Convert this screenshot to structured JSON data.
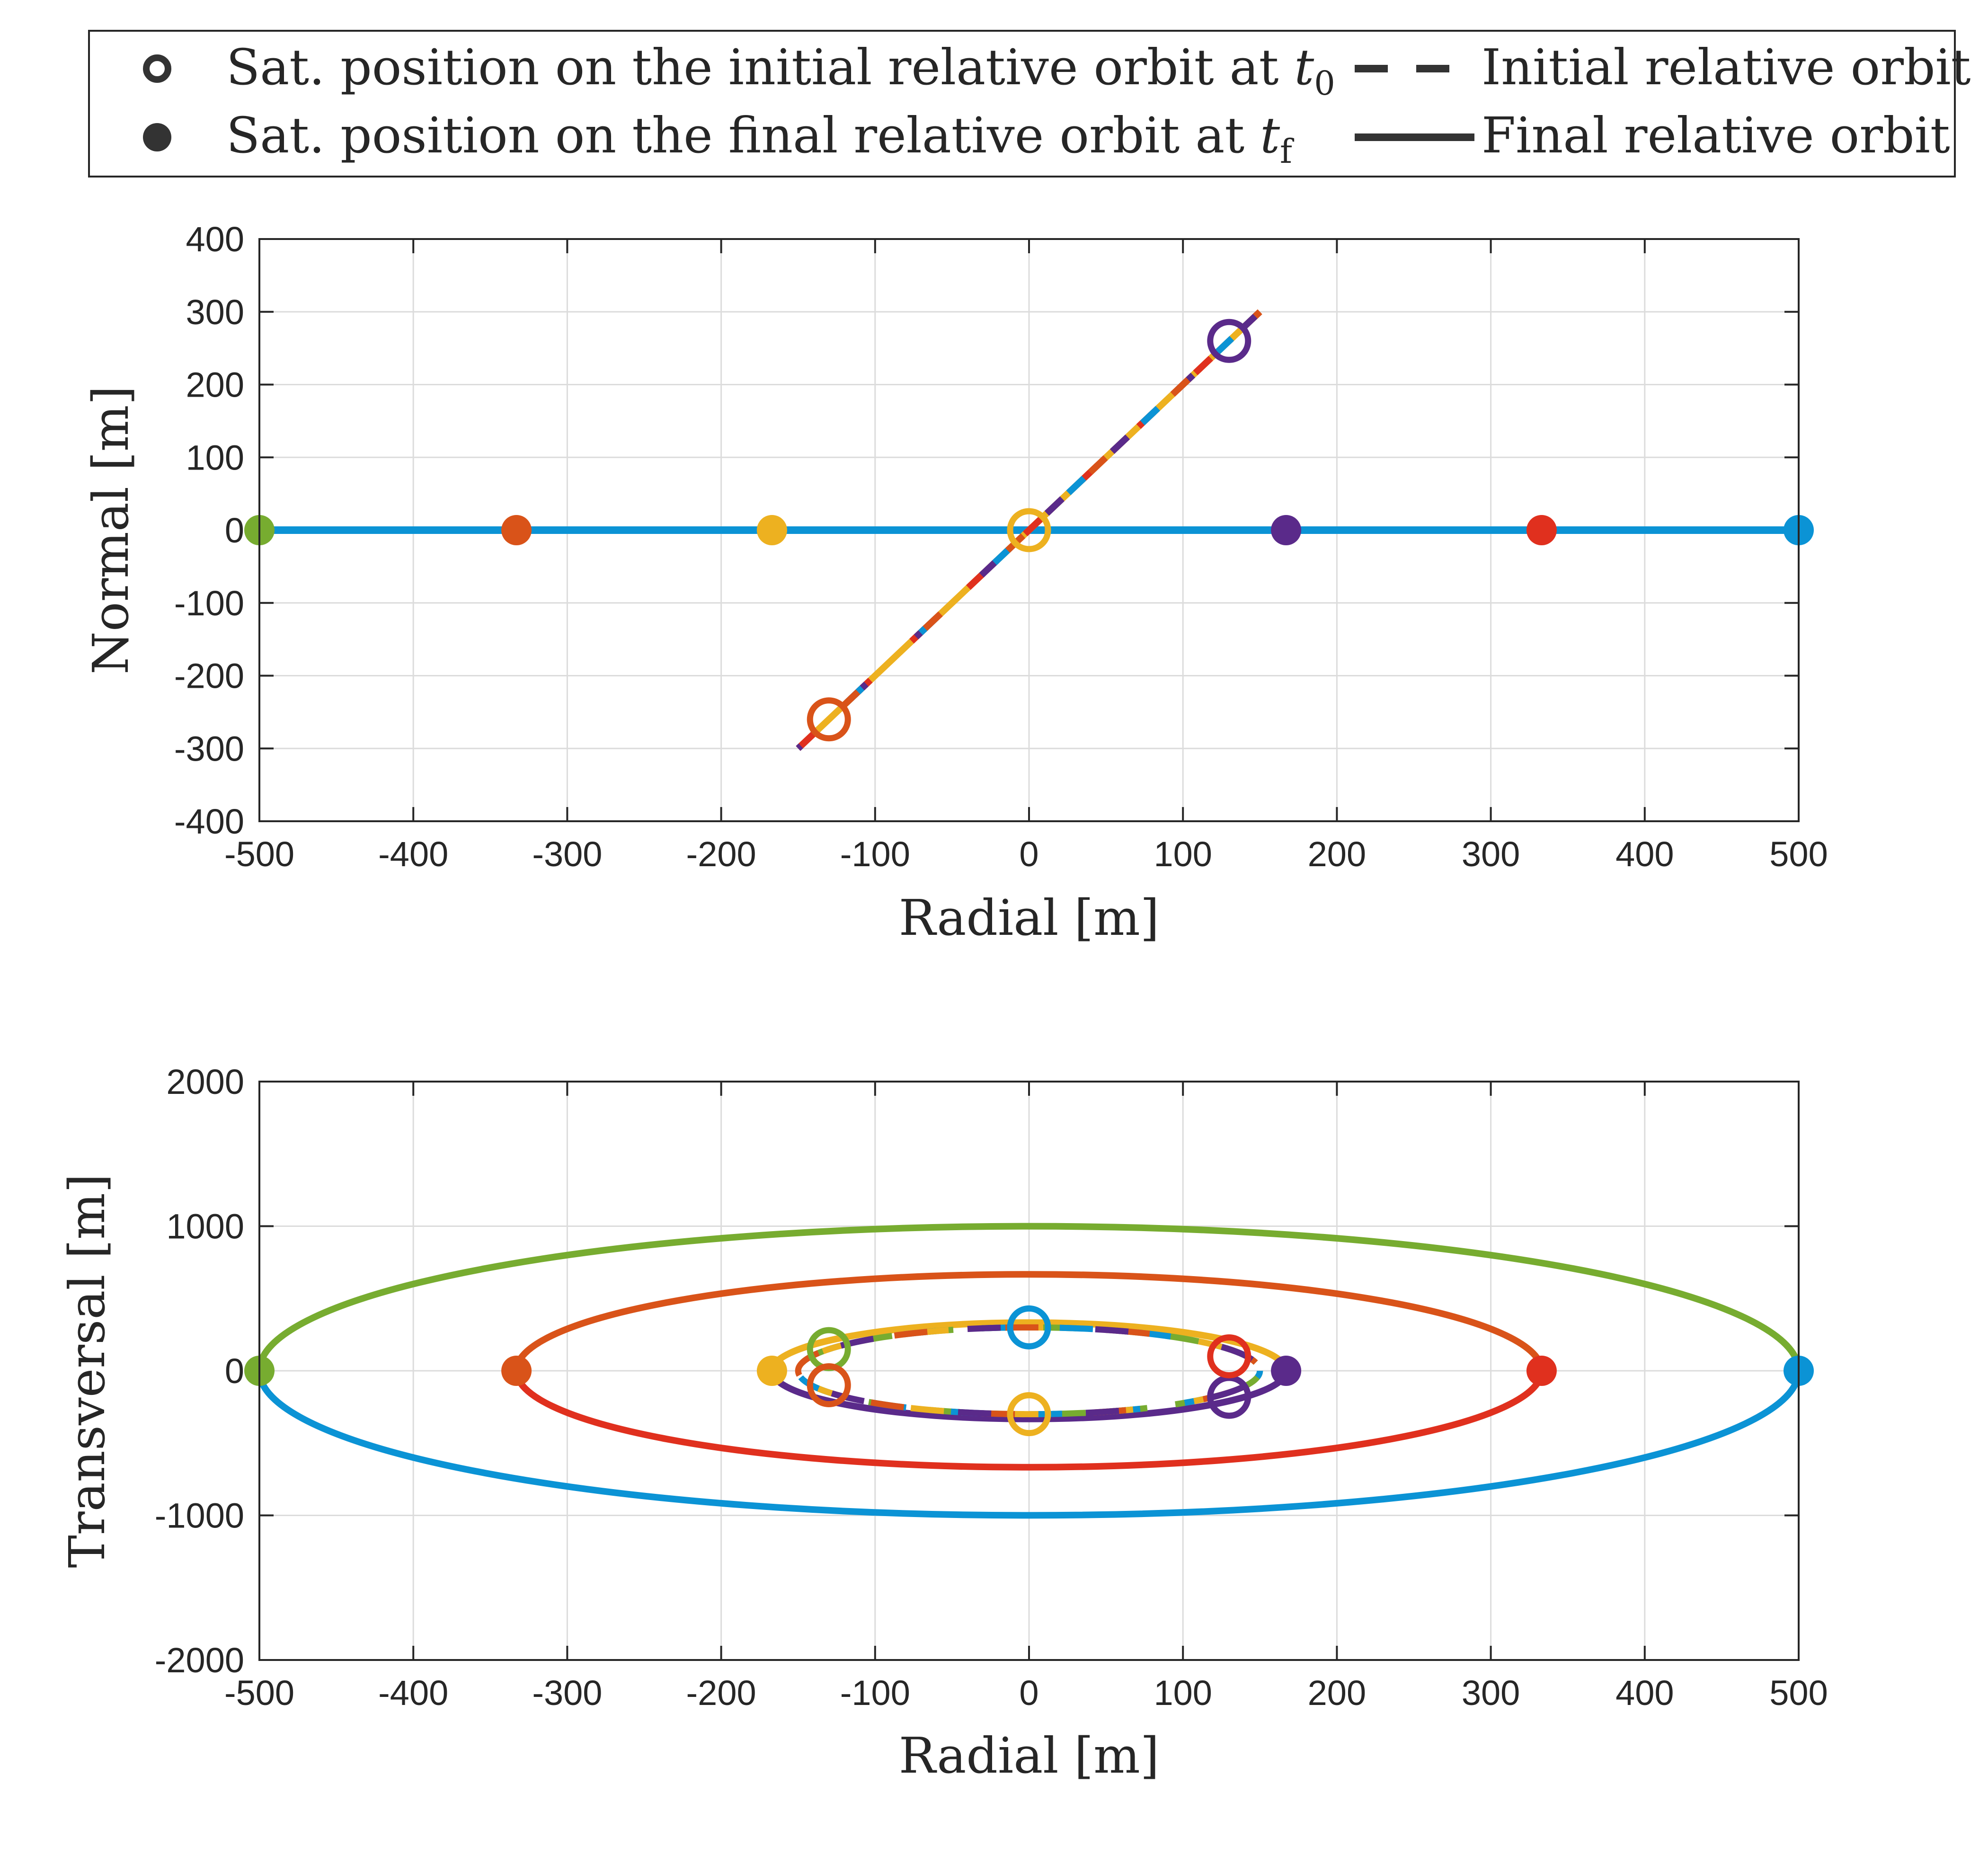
{
  "legend": {
    "items": [
      {
        "key": "initial_marker",
        "text": "Sat. position on the initial relative orbit at ",
        "sym": "t",
        "sub": "0",
        "style": "marker-open"
      },
      {
        "key": "final_marker",
        "text": "Sat. position on the final relative orbit at ",
        "sym": "t",
        "sub": "f",
        "style": "marker-filled"
      },
      {
        "key": "initial_orbit",
        "text": "Initial relative orbit",
        "style": "line-dashed"
      },
      {
        "key": "final_orbit",
        "text": "Final relative orbit",
        "style": "line-solid"
      }
    ],
    "color": "#333333"
  },
  "colors": {
    "blue": "#0b93d5",
    "red": "#e0301e",
    "orange": "#d95319",
    "yellow": "#edb120",
    "purple": "#5a2a8a",
    "green": "#77ac30"
  },
  "chart_data": [
    {
      "type": "line",
      "title": "",
      "xlabel": "Radial [m]",
      "ylabel": "Normal [m]",
      "xlim": [
        -500,
        500
      ],
      "ylim": [
        -400,
        400
      ],
      "xticks": [
        -500,
        -400,
        -300,
        -200,
        -100,
        0,
        100,
        200,
        300,
        400,
        500
      ],
      "yticks": [
        -400,
        -300,
        -200,
        -100,
        0,
        100,
        200,
        300,
        400
      ],
      "grid": true,
      "initial_orbit": {
        "x": [
          -150,
          150
        ],
        "y": [
          -300,
          300
        ],
        "colors": [
          "yellow",
          "red",
          "purple",
          "blue",
          "orange"
        ]
      },
      "final_orbit": {
        "x": [
          -500,
          500
        ],
        "y": [
          0,
          0
        ],
        "color": "blue"
      },
      "initial_positions": [
        {
          "x": 0,
          "y": 0,
          "color": "yellow"
        },
        {
          "x": 130,
          "y": 260,
          "color": "purple"
        },
        {
          "x": -130,
          "y": -260,
          "color": "orange"
        }
      ],
      "final_positions": [
        {
          "x": -500,
          "y": 0,
          "color": "green"
        },
        {
          "x": -333,
          "y": 0,
          "color": "orange"
        },
        {
          "x": -167,
          "y": 0,
          "color": "yellow"
        },
        {
          "x": 167,
          "y": 0,
          "color": "purple"
        },
        {
          "x": 333,
          "y": 0,
          "color": "red"
        },
        {
          "x": 500,
          "y": 0,
          "color": "blue"
        }
      ]
    },
    {
      "type": "line",
      "title": "",
      "xlabel": "Radial [m]",
      "ylabel": "Transversal [m]",
      "xlim": [
        -500,
        500
      ],
      "ylim": [
        -2000,
        2000
      ],
      "xticks": [
        -500,
        -400,
        -300,
        -200,
        -100,
        0,
        100,
        200,
        300,
        400,
        500
      ],
      "yticks": [
        -2000,
        -1000,
        0,
        1000,
        2000
      ],
      "grid": true,
      "initial_orbit": {
        "semi_axis_x": 150,
        "semi_axis_y": 300,
        "colors": [
          "green",
          "blue",
          "yellow",
          "orange",
          "purple"
        ]
      },
      "final_orbits": [
        {
          "semi_axis_x": 500,
          "semi_axis_y": 1000,
          "upper_color": "green",
          "lower_color": "blue"
        },
        {
          "semi_axis_x": 333,
          "semi_axis_y": 667,
          "upper_color": "orange",
          "lower_color": "red"
        },
        {
          "semi_axis_x": 167,
          "semi_axis_y": 333,
          "upper_color": "yellow",
          "lower_color": "purple"
        }
      ],
      "initial_positions": [
        {
          "x": 0,
          "y": 300,
          "color": "blue"
        },
        {
          "x": -130,
          "y": 150,
          "color": "green"
        },
        {
          "x": -130,
          "y": -100,
          "color": "orange"
        },
        {
          "x": 0,
          "y": -300,
          "color": "yellow"
        },
        {
          "x": 130,
          "y": -180,
          "color": "purple"
        },
        {
          "x": 130,
          "y": 100,
          "color": "red"
        }
      ],
      "final_positions": [
        {
          "x": -500,
          "y": 0,
          "color": "green"
        },
        {
          "x": -333,
          "y": 0,
          "color": "orange"
        },
        {
          "x": -167,
          "y": 0,
          "color": "yellow"
        },
        {
          "x": 167,
          "y": 0,
          "color": "purple"
        },
        {
          "x": 333,
          "y": 0,
          "color": "red"
        },
        {
          "x": 500,
          "y": 0,
          "color": "blue"
        }
      ]
    }
  ]
}
